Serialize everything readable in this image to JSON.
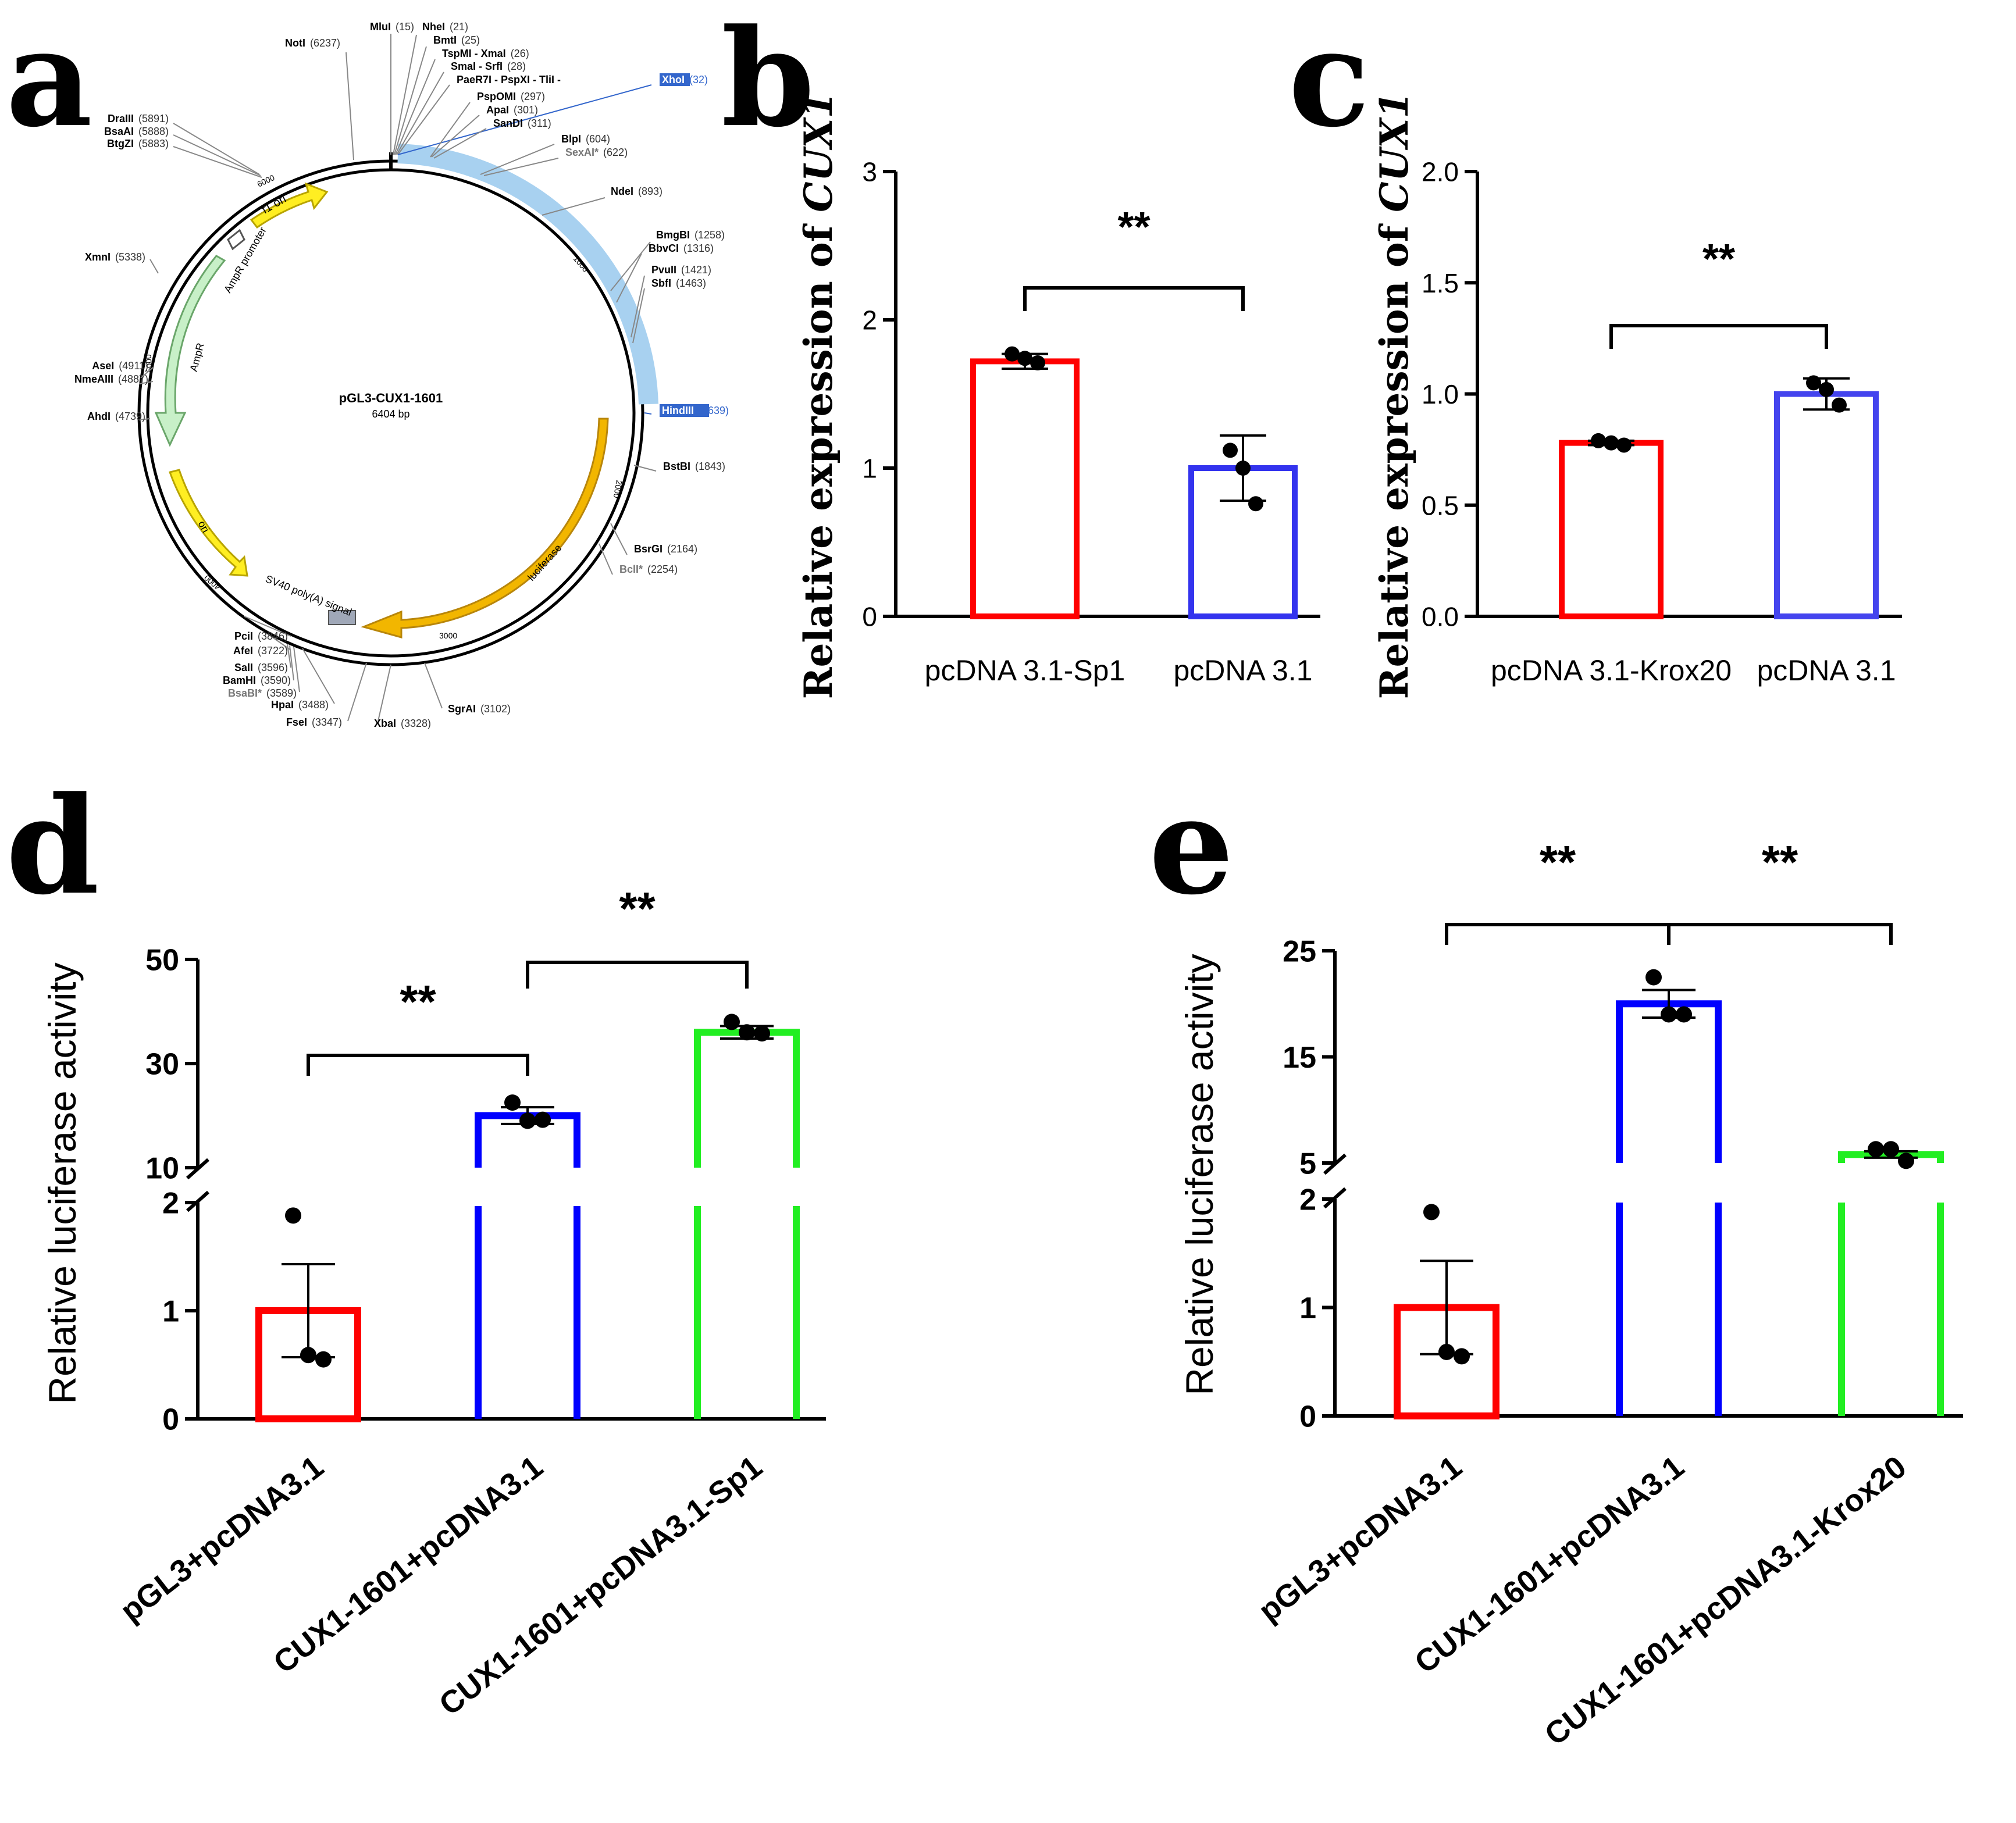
{
  "panels": [
    {
      "letter": "a"
    },
    {
      "letter": "b"
    },
    {
      "letter": "c"
    },
    {
      "letter": "d"
    },
    {
      "letter": "e"
    }
  ],
  "plasmap": {
    "name": "pGL3-CUX1-1601",
    "size": "6404 bp",
    "sites": [
      {
        "name": "MluI",
        "pos": "(15)"
      },
      {
        "name": "NotI",
        "pos": "(6237)"
      },
      {
        "name": "NheI",
        "pos": "(21)"
      },
      {
        "name": "BmtI",
        "pos": "(25)"
      },
      {
        "name": "TspMI - XmaI",
        "pos": "(26)"
      },
      {
        "name": "SmaI - SrfI",
        "pos": "(28)"
      },
      {
        "name": "PaeR7I - PspXI - TliI -",
        "pos": ""
      },
      {
        "name": "XhoI",
        "pos": "(32)"
      },
      {
        "name": "PspOMI",
        "pos": "(297)"
      },
      {
        "name": "ApaI",
        "pos": "(301)"
      },
      {
        "name": "SanDI",
        "pos": "(311)"
      },
      {
        "name": "BlpI",
        "pos": "(604)"
      },
      {
        "name": "SexAI*",
        "pos": "(622)"
      },
      {
        "name": "NdeI",
        "pos": "(893)"
      },
      {
        "name": "BmgBI",
        "pos": "(1258)"
      },
      {
        "name": "BbvCI",
        "pos": "(1316)"
      },
      {
        "name": "PvuII",
        "pos": "(1421)"
      },
      {
        "name": "SbfI",
        "pos": "(1463)"
      },
      {
        "name": "HindIII",
        "pos": "(1639)"
      },
      {
        "name": "BstBI",
        "pos": "(1843)"
      },
      {
        "name": "BsrGI",
        "pos": "(2164)"
      },
      {
        "name": "BclI*",
        "pos": "(2254)"
      },
      {
        "name": "SgrAI",
        "pos": "(3102)"
      },
      {
        "name": "XbaI",
        "pos": "(3328)"
      },
      {
        "name": "FseI",
        "pos": "(3347)"
      },
      {
        "name": "HpaI",
        "pos": "(3488)"
      },
      {
        "name": "BsaBI*",
        "pos": "(3589)"
      },
      {
        "name": "BamHI",
        "pos": "(3590)"
      },
      {
        "name": "SalI",
        "pos": "(3596)"
      },
      {
        "name": "AfeI",
        "pos": "(3722)"
      },
      {
        "name": "PciI",
        "pos": "(3846)"
      },
      {
        "name": "AhdI",
        "pos": "(4739)"
      },
      {
        "name": "NmeAIII",
        "pos": "(4887)"
      },
      {
        "name": "AseI",
        "pos": "(4911)"
      },
      {
        "name": "XmnI",
        "pos": "(5338)"
      },
      {
        "name": "BtgZI",
        "pos": "(5883)"
      },
      {
        "name": "BsaAI",
        "pos": "(5888)"
      },
      {
        "name": "DraIII",
        "pos": "(5891)"
      }
    ],
    "features": [
      "f1 ori",
      "AmpR promoter",
      "AmpR",
      "ori",
      "SV40 poly(A) signal",
      "luciferase"
    ],
    "ticks": [
      "1000",
      "2000",
      "3000",
      "4000",
      "5000",
      "6000"
    ]
  },
  "chart_data": [
    {
      "panel": "b",
      "type": "bar",
      "ylabel_prefix": "Relative expression of ",
      "ylabel_gene": "CUX1",
      "categories": [
        "pcDNA 3.1-Sp1",
        "pcDNA 3.1"
      ],
      "values": [
        1.72,
        1.0
      ],
      "errors": [
        0.05,
        0.22
      ],
      "points": [
        [
          1.77,
          1.74,
          1.71
        ],
        [
          1.12,
          1.0,
          0.76
        ]
      ],
      "colors": [
        "#ff0000",
        "#3333ee"
      ],
      "ylim": [
        0,
        3
      ],
      "yticks": [
        "0",
        "1",
        "2",
        "3"
      ],
      "significance": [
        {
          "label": "**",
          "from": 0,
          "to": 1
        }
      ]
    },
    {
      "panel": "c",
      "type": "bar",
      "ylabel_prefix": "Relative expression of ",
      "ylabel_gene": "CUX1",
      "categories": [
        "pcDNA 3.1-Krox20",
        "pcDNA 3.1"
      ],
      "values": [
        0.78,
        1.0
      ],
      "errors": [
        0.01,
        0.07
      ],
      "points": [
        [
          0.79,
          0.78,
          0.77
        ],
        [
          1.05,
          1.02,
          0.95
        ]
      ],
      "colors": [
        "#ff0000",
        "#4444ee"
      ],
      "ylim": [
        0,
        2.0
      ],
      "yticks": [
        "0.0",
        "0.5",
        "1.0",
        "1.5",
        "2.0"
      ],
      "significance": [
        {
          "label": "**",
          "from": 0,
          "to": 1
        }
      ]
    },
    {
      "panel": "d",
      "type": "bar",
      "ylabel": "Relative luciferase activity",
      "categories": [
        "pGL3+pcDNA3.1",
        "CUX1-1601+pcDNA3.1",
        "CUX1-1601+pcDNA3.1-Sp1"
      ],
      "values": [
        1.0,
        20,
        36
      ],
      "errors": [
        0.43,
        1.6,
        1.2
      ],
      "points": [
        [
          1.88,
          0.59,
          0.55
        ],
        [
          22.5,
          19.0,
          19.2
        ],
        [
          38.0,
          36.0,
          35.8
        ]
      ],
      "colors": [
        "#ff0000",
        "#0000ff",
        "#22ee22"
      ],
      "axis_break": {
        "lower": [
          0,
          2
        ],
        "upper": [
          10,
          50
        ]
      },
      "yticks_lower": [
        "0",
        "1",
        "2"
      ],
      "yticks_upper": [
        "10",
        "30",
        "50"
      ],
      "significance": [
        {
          "label": "**",
          "from": 0,
          "to": 1
        },
        {
          "label": "**",
          "from": 1,
          "to": 2
        }
      ]
    },
    {
      "panel": "e",
      "type": "bar",
      "ylabel": "Relative luciferase activity",
      "categories": [
        "pGL3+pcDNA3.1",
        "CUX1-1601+pcDNA3.1",
        "CUX1-1601+pcDNA3.1-Krox20"
      ],
      "values": [
        1.0,
        20,
        5.8
      ],
      "errors": [
        0.43,
        1.3,
        0.3
      ],
      "points": [
        [
          1.88,
          0.59,
          0.55
        ],
        [
          22.5,
          19.0,
          19.0
        ],
        [
          6.3,
          6.3,
          5.2
        ]
      ],
      "colors": [
        "#ff0000",
        "#0000ff",
        "#22ee22"
      ],
      "axis_break": {
        "lower": [
          0,
          2
        ],
        "upper": [
          5,
          25
        ]
      },
      "yticks_lower": [
        "0",
        "1",
        "2"
      ],
      "yticks_upper": [
        "5",
        "15",
        "25"
      ],
      "significance": [
        {
          "label": "**",
          "from": 0,
          "to": 1
        },
        {
          "label": "**",
          "from": 1,
          "to": 2
        }
      ]
    }
  ]
}
